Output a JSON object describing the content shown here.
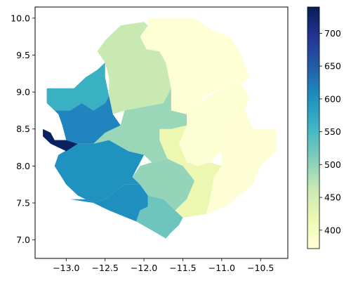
{
  "chart_data": {
    "type": "choropleth",
    "title": "",
    "xlabel": "",
    "ylabel": "",
    "xlim": [
      -13.4,
      -10.15
    ],
    "ylim": [
      6.75,
      10.15
    ],
    "xticks": [
      -13.0,
      -12.5,
      -12.0,
      -11.5,
      -11.0,
      -10.5
    ],
    "xtick_labels": [
      "−13.0",
      "−12.5",
      "−12.0",
      "−11.5",
      "−11.0",
      "−10.5"
    ],
    "yticks": [
      7.0,
      7.5,
      8.0,
      8.5,
      9.0,
      9.5,
      10.0
    ],
    "ytick_labels": [
      "7.0",
      "7.5",
      "8.0",
      "8.5",
      "9.0",
      "9.5",
      "10.0"
    ],
    "colormap": "YlGnBu",
    "colorbar": {
      "vmin": 372,
      "vmax": 740,
      "ticks": [
        400,
        450,
        500,
        550,
        600,
        650,
        700
      ],
      "tick_labels": [
        "400",
        "450",
        "500",
        "550",
        "600",
        "650",
        "700"
      ],
      "stops": [
        "#ffffd9",
        "#edf8b1",
        "#c7e9b4",
        "#7fcdbb",
        "#41b6c4",
        "#1d91c0",
        "#225ea8",
        "#253494",
        "#081d58"
      ]
    },
    "regions": [
      {
        "value": 380,
        "color": "#ffffd6",
        "polygon": [
          [
            -11.95,
            10.0
          ],
          [
            -11.35,
            10.0
          ],
          [
            -11.15,
            9.85
          ],
          [
            -10.9,
            9.75
          ],
          [
            -10.75,
            9.5
          ],
          [
            -10.65,
            9.2
          ],
          [
            -10.75,
            9.1
          ],
          [
            -11.0,
            9.05
          ],
          [
            -11.2,
            8.95
          ],
          [
            -11.3,
            8.85
          ],
          [
            -11.45,
            8.7
          ],
          [
            -11.65,
            8.75
          ],
          [
            -11.65,
            9.05
          ],
          [
            -11.72,
            9.4
          ],
          [
            -11.8,
            9.55
          ],
          [
            -11.97,
            9.58
          ],
          [
            -12.05,
            9.75
          ],
          [
            -11.95,
            9.9
          ]
        ]
      },
      {
        "value": 390,
        "color": "#fcfed4",
        "polygon": [
          [
            -11.3,
            8.85
          ],
          [
            -11.0,
            9.05
          ],
          [
            -10.75,
            9.1
          ],
          [
            -10.65,
            8.95
          ],
          [
            -10.7,
            8.75
          ],
          [
            -10.95,
            8.6
          ],
          [
            -11.05,
            8.4
          ],
          [
            -11.0,
            8.2
          ],
          [
            -11.15,
            8.05
          ],
          [
            -11.3,
            8.0
          ],
          [
            -11.45,
            8.05
          ],
          [
            -11.55,
            8.3
          ],
          [
            -11.45,
            8.55
          ],
          [
            -11.45,
            8.7
          ]
        ]
      },
      {
        "value": 385,
        "color": "#fdfed5",
        "polygon": [
          [
            -10.95,
            8.6
          ],
          [
            -10.7,
            8.75
          ],
          [
            -10.6,
            8.5
          ],
          [
            -10.3,
            8.5
          ],
          [
            -10.3,
            8.2
          ],
          [
            -10.5,
            8.0
          ],
          [
            -10.6,
            7.75
          ],
          [
            -10.95,
            7.45
          ],
          [
            -11.2,
            7.35
          ],
          [
            -11.15,
            7.55
          ],
          [
            -11.1,
            7.85
          ],
          [
            -11.0,
            8.0
          ],
          [
            -11.0,
            8.2
          ],
          [
            -11.05,
            8.4
          ]
        ]
      },
      {
        "value": 440,
        "color": "#ecf7b1",
        "polygon": [
          [
            -11.45,
            8.55
          ],
          [
            -11.55,
            8.3
          ],
          [
            -11.45,
            8.05
          ],
          [
            -11.3,
            8.0
          ],
          [
            -11.15,
            8.05
          ],
          [
            -11.0,
            8.0
          ],
          [
            -11.1,
            7.85
          ],
          [
            -11.15,
            7.55
          ],
          [
            -11.2,
            7.35
          ],
          [
            -11.5,
            7.3
          ],
          [
            -11.6,
            7.4
          ],
          [
            -11.45,
            7.55
          ],
          [
            -11.35,
            7.8
          ],
          [
            -11.5,
            8.0
          ],
          [
            -11.7,
            8.1
          ],
          [
            -11.8,
            8.35
          ],
          [
            -11.8,
            8.5
          ],
          [
            -11.65,
            8.5
          ]
        ]
      },
      {
        "value": 470,
        "color": "#c9e9b3",
        "polygon": [
          [
            -12.6,
            9.55
          ],
          [
            -12.5,
            9.7
          ],
          [
            -12.3,
            9.9
          ],
          [
            -12.0,
            9.95
          ],
          [
            -11.95,
            9.9
          ],
          [
            -12.05,
            9.75
          ],
          [
            -11.97,
            9.58
          ],
          [
            -11.8,
            9.55
          ],
          [
            -11.72,
            9.4
          ],
          [
            -11.65,
            9.05
          ],
          [
            -11.75,
            8.85
          ],
          [
            -12.0,
            8.8
          ],
          [
            -12.25,
            8.75
          ],
          [
            -12.4,
            8.7
          ],
          [
            -12.45,
            8.95
          ],
          [
            -12.45,
            9.2
          ],
          [
            -12.5,
            9.4
          ]
        ]
      },
      {
        "value": 500,
        "color": "#99d7b8",
        "polygon": [
          [
            -11.75,
            8.85
          ],
          [
            -11.65,
            9.05
          ],
          [
            -11.65,
            8.75
          ],
          [
            -11.45,
            8.7
          ],
          [
            -11.45,
            8.55
          ],
          [
            -11.65,
            8.5
          ],
          [
            -11.8,
            8.5
          ],
          [
            -11.8,
            8.35
          ],
          [
            -11.7,
            8.1
          ],
          [
            -11.9,
            8.05
          ],
          [
            -12.0,
            8.15
          ],
          [
            -12.2,
            8.2
          ],
          [
            -12.45,
            8.35
          ],
          [
            -12.65,
            8.3
          ],
          [
            -12.5,
            8.45
          ],
          [
            -12.3,
            8.55
          ],
          [
            -12.25,
            8.75
          ],
          [
            -12.0,
            8.8
          ]
        ]
      },
      {
        "value": 510,
        "color": "#94d4b9",
        "polygon": [
          [
            -11.7,
            8.1
          ],
          [
            -11.5,
            8.0
          ],
          [
            -11.35,
            7.8
          ],
          [
            -11.45,
            7.55
          ],
          [
            -11.6,
            7.4
          ],
          [
            -11.75,
            7.55
          ],
          [
            -11.95,
            7.6
          ],
          [
            -12.05,
            7.75
          ],
          [
            -12.15,
            7.85
          ],
          [
            -12.05,
            8.0
          ],
          [
            -11.9,
            8.05
          ]
        ]
      },
      {
        "value": 530,
        "color": "#6ec5bd",
        "polygon": [
          [
            -11.5,
            7.3
          ],
          [
            -11.55,
            7.2
          ],
          [
            -11.65,
            7.1
          ],
          [
            -11.72,
            7.02
          ],
          [
            -11.85,
            7.1
          ],
          [
            -12.1,
            7.25
          ],
          [
            -12.05,
            7.4
          ],
          [
            -11.95,
            7.45
          ],
          [
            -11.95,
            7.6
          ],
          [
            -11.75,
            7.55
          ],
          [
            -11.6,
            7.4
          ]
        ]
      },
      {
        "value": 560,
        "color": "#3ab1c3",
        "polygon": [
          [
            -13.25,
            9.05
          ],
          [
            -12.9,
            9.05
          ],
          [
            -12.75,
            9.2
          ],
          [
            -12.6,
            9.3
          ],
          [
            -12.5,
            9.4
          ],
          [
            -12.5,
            9.2
          ],
          [
            -12.45,
            8.95
          ],
          [
            -12.5,
            8.85
          ],
          [
            -12.65,
            8.75
          ],
          [
            -12.8,
            8.85
          ],
          [
            -12.95,
            8.75
          ],
          [
            -13.15,
            8.75
          ],
          [
            -13.25,
            8.85
          ]
        ]
      },
      {
        "value": 620,
        "color": "#2085be",
        "polygon": [
          [
            -12.45,
            8.95
          ],
          [
            -12.4,
            8.7
          ],
          [
            -12.3,
            8.55
          ],
          [
            -12.5,
            8.45
          ],
          [
            -12.65,
            8.3
          ],
          [
            -12.85,
            8.3
          ],
          [
            -13.0,
            8.35
          ],
          [
            -13.05,
            8.55
          ],
          [
            -13.1,
            8.7
          ],
          [
            -13.15,
            8.75
          ],
          [
            -12.95,
            8.75
          ],
          [
            -12.8,
            8.85
          ],
          [
            -12.65,
            8.75
          ],
          [
            -12.5,
            8.85
          ]
        ]
      },
      {
        "value": 600,
        "color": "#1f92bf",
        "polygon": [
          [
            -12.65,
            8.3
          ],
          [
            -12.45,
            8.35
          ],
          [
            -12.2,
            8.2
          ],
          [
            -12.0,
            8.15
          ],
          [
            -12.15,
            7.85
          ],
          [
            -12.05,
            7.75
          ],
          [
            -12.25,
            7.75
          ],
          [
            -12.5,
            7.55
          ],
          [
            -12.65,
            7.5
          ],
          [
            -12.85,
            7.6
          ],
          [
            -13.0,
            7.75
          ],
          [
            -13.15,
            8.0
          ],
          [
            -13.1,
            8.15
          ],
          [
            -12.85,
            8.3
          ]
        ]
      },
      {
        "value": 610,
        "color": "#1e8fbf",
        "polygon": [
          [
            -12.05,
            7.75
          ],
          [
            -11.95,
            7.6
          ],
          [
            -11.95,
            7.45
          ],
          [
            -12.05,
            7.4
          ],
          [
            -12.1,
            7.25
          ],
          [
            -12.45,
            7.4
          ],
          [
            -12.75,
            7.55
          ],
          [
            -12.95,
            7.55
          ],
          [
            -12.65,
            7.5
          ],
          [
            -12.5,
            7.55
          ],
          [
            -12.25,
            7.75
          ]
        ]
      },
      {
        "value": 740,
        "color": "#0b2260",
        "polygon": [
          [
            -13.3,
            8.5
          ],
          [
            -13.2,
            8.45
          ],
          [
            -13.15,
            8.35
          ],
          [
            -13.0,
            8.35
          ],
          [
            -12.85,
            8.3
          ],
          [
            -13.0,
            8.2
          ],
          [
            -13.2,
            8.3
          ],
          [
            -13.3,
            8.4
          ]
        ]
      }
    ]
  }
}
